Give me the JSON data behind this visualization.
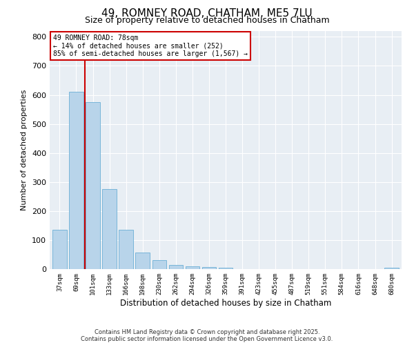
{
  "title": "49, ROMNEY ROAD, CHATHAM, ME5 7LU",
  "subtitle": "Size of property relative to detached houses in Chatham",
  "xlabel": "Distribution of detached houses by size in Chatham",
  "ylabel": "Number of detached properties",
  "bar_labels": [
    "37sqm",
    "69sqm",
    "101sqm",
    "133sqm",
    "166sqm",
    "198sqm",
    "230sqm",
    "262sqm",
    "294sqm",
    "326sqm",
    "359sqm",
    "391sqm",
    "423sqm",
    "455sqm",
    "487sqm",
    "519sqm",
    "551sqm",
    "584sqm",
    "616sqm",
    "648sqm",
    "680sqm"
  ],
  "bar_values": [
    135,
    610,
    575,
    275,
    135,
    58,
    30,
    15,
    10,
    8,
    5,
    0,
    0,
    0,
    0,
    0,
    0,
    0,
    0,
    0,
    5
  ],
  "bar_color": "#b8d4ea",
  "bar_edge_color": "#6aaed6",
  "vline_x": 1.5,
  "vline_color": "#cc0000",
  "annotation_title": "49 ROMNEY ROAD: 78sqm",
  "annotation_line2": "← 14% of detached houses are smaller (252)",
  "annotation_line3": "85% of semi-detached houses are larger (1,567) →",
  "annotation_box_color": "#cc0000",
  "ylim": [
    0,
    820
  ],
  "yticks": [
    0,
    100,
    200,
    300,
    400,
    500,
    600,
    700,
    800
  ],
  "background_color": "#e8eef4",
  "footer_line1": "Contains HM Land Registry data © Crown copyright and database right 2025.",
  "footer_line2": "Contains public sector information licensed under the Open Government Licence v3.0.",
  "title_fontsize": 11,
  "subtitle_fontsize": 9,
  "footer_fontsize": 6
}
